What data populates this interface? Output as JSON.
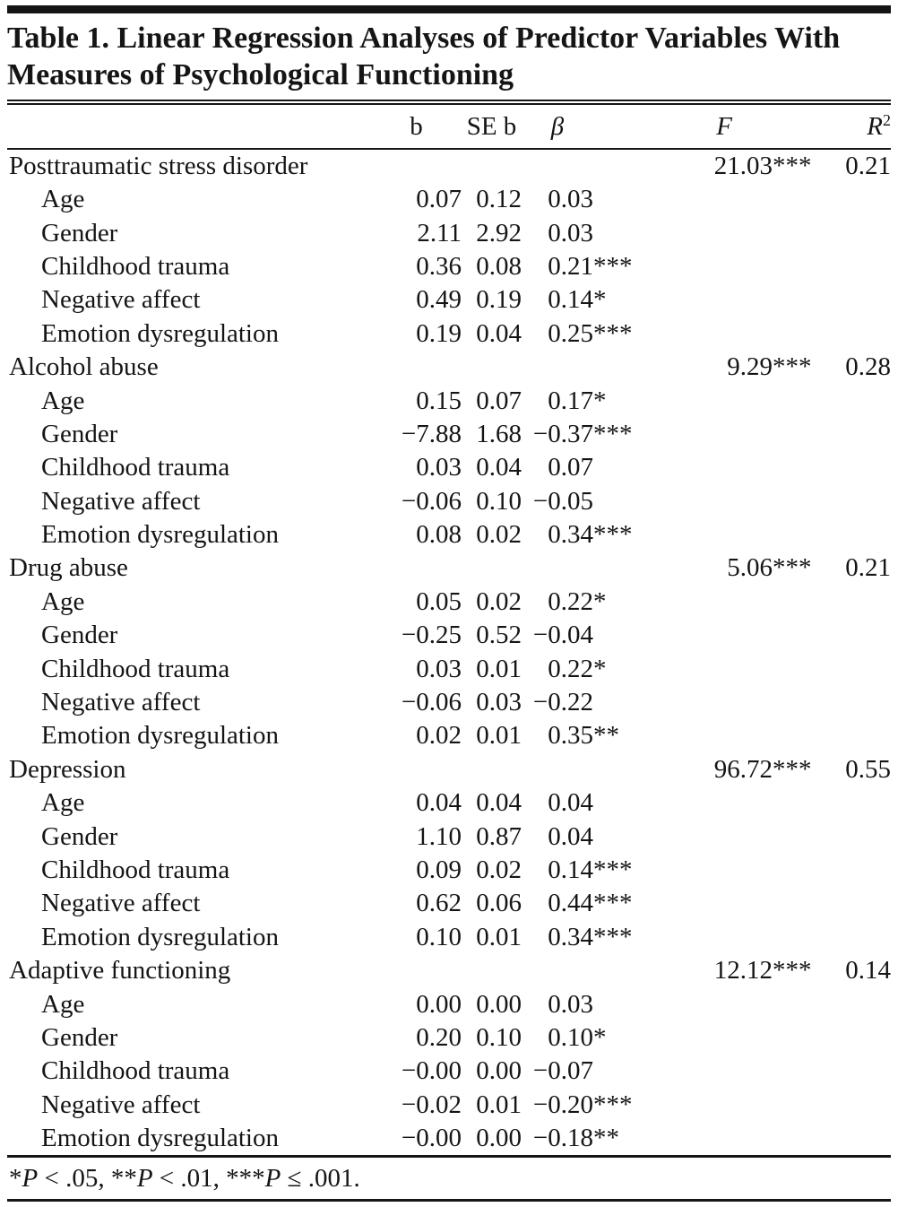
{
  "title": "Table 1. Linear Regression Analyses of Predictor Variables With Measures of Psychological Functioning",
  "header": {
    "b": "b",
    "se_b": "SE b",
    "beta": "β",
    "f": "F",
    "r": "R",
    "r_sup": "2"
  },
  "chart_data": {
    "type": "table",
    "title": "Table 1. Linear Regression Analyses of Predictor Variables With Measures of Psychological Functioning",
    "columns": [
      "",
      "b",
      "SE b",
      "β",
      "F",
      "R2"
    ]
  },
  "table": {
    "sections": [
      {
        "outcome": "Posttraumatic stress disorder",
        "F": "21.03",
        "F_stars": "***",
        "R2": "0.21",
        "predictors": [
          {
            "label": "Age",
            "b": "0.07",
            "se": "0.12",
            "beta": "0.03",
            "beta_stars": ""
          },
          {
            "label": "Gender",
            "b": "2.11",
            "se": "2.92",
            "beta": "0.03",
            "beta_stars": ""
          },
          {
            "label": "Childhood trauma",
            "b": "0.36",
            "se": "0.08",
            "beta": "0.21",
            "beta_stars": "***"
          },
          {
            "label": "Negative affect",
            "b": "0.49",
            "se": "0.19",
            "beta": "0.14",
            "beta_stars": "*"
          },
          {
            "label": "Emotion dysregulation",
            "b": "0.19",
            "se": "0.04",
            "beta": "0.25",
            "beta_stars": "***"
          }
        ]
      },
      {
        "outcome": "Alcohol abuse",
        "F": "9.29",
        "F_stars": "***",
        "R2": "0.28",
        "predictors": [
          {
            "label": "Age",
            "b": "0.15",
            "se": "0.07",
            "beta": "0.17",
            "beta_stars": "*"
          },
          {
            "label": "Gender",
            "b": "−7.88",
            "se": "1.68",
            "beta": "−0.37",
            "beta_stars": "***"
          },
          {
            "label": "Childhood trauma",
            "b": "0.03",
            "se": "0.04",
            "beta": "0.07",
            "beta_stars": ""
          },
          {
            "label": "Negative affect",
            "b": "−0.06",
            "se": "0.10",
            "beta": "−0.05",
            "beta_stars": ""
          },
          {
            "label": "Emotion dysregulation",
            "b": "0.08",
            "se": "0.02",
            "beta": "0.34",
            "beta_stars": "***"
          }
        ]
      },
      {
        "outcome": "Drug abuse",
        "F": "5.06",
        "F_stars": "***",
        "R2": "0.21",
        "predictors": [
          {
            "label": "Age",
            "b": "0.05",
            "se": "0.02",
            "beta": "0.22",
            "beta_stars": "*"
          },
          {
            "label": "Gender",
            "b": "−0.25",
            "se": "0.52",
            "beta": "−0.04",
            "beta_stars": ""
          },
          {
            "label": "Childhood trauma",
            "b": "0.03",
            "se": "0.01",
            "beta": "0.22",
            "beta_stars": "*"
          },
          {
            "label": "Negative affect",
            "b": "−0.06",
            "se": "0.03",
            "beta": "−0.22",
            "beta_stars": ""
          },
          {
            "label": "Emotion dysregulation",
            "b": "0.02",
            "se": "0.01",
            "beta": "0.35",
            "beta_stars": "**"
          }
        ]
      },
      {
        "outcome": "Depression",
        "F": "96.72",
        "F_stars": "***",
        "R2": "0.55",
        "predictors": [
          {
            "label": "Age",
            "b": "0.04",
            "se": "0.04",
            "beta": "0.04",
            "beta_stars": ""
          },
          {
            "label": "Gender",
            "b": "1.10",
            "se": "0.87",
            "beta": "0.04",
            "beta_stars": ""
          },
          {
            "label": "Childhood trauma",
            "b": "0.09",
            "se": "0.02",
            "beta": "0.14",
            "beta_stars": "***"
          },
          {
            "label": "Negative affect",
            "b": "0.62",
            "se": "0.06",
            "beta": "0.44",
            "beta_stars": "***"
          },
          {
            "label": "Emotion dysregulation",
            "b": "0.10",
            "se": "0.01",
            "beta": "0.34",
            "beta_stars": "***"
          }
        ]
      },
      {
        "outcome": "Adaptive functioning",
        "F": "12.12",
        "F_stars": "***",
        "R2": "0.14",
        "predictors": [
          {
            "label": "Age",
            "b": "0.00",
            "se": "0.00",
            "beta": "0.03",
            "beta_stars": ""
          },
          {
            "label": "Gender",
            "b": "0.20",
            "se": "0.10",
            "beta": "0.10",
            "beta_stars": "*"
          },
          {
            "label": "Childhood trauma",
            "b": "−0.00",
            "se": "0.00",
            "beta": "−0.07",
            "beta_stars": ""
          },
          {
            "label": "Negative affect",
            "b": "−0.02",
            "se": "0.01",
            "beta": "−0.20",
            "beta_stars": "***"
          },
          {
            "label": "Emotion dysregulation",
            "b": "−0.00",
            "se": "0.00",
            "beta": "−0.18",
            "beta_stars": "**"
          }
        ]
      }
    ]
  },
  "footnote": {
    "parts": [
      "*",
      "P",
      " < .05, ",
      "**",
      "P",
      " < .01, ",
      "***",
      "P",
      " ≤ .001."
    ]
  }
}
